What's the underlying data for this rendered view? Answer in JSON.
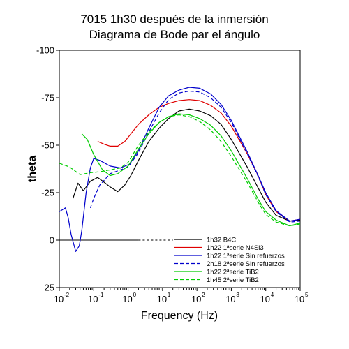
{
  "chart_data": {
    "type": "line",
    "title": "7015 1h30 después de la inmersión",
    "subtitle": "Diagrama de Bode par el ángulo",
    "xlabel": "Frequency (Hz)",
    "ylabel": "theta",
    "x_scale": "log",
    "xlim": [
      0.01,
      100000
    ],
    "ylim": [
      25,
      -100
    ],
    "x_ticks": [
      {
        "base": "10",
        "exp": "-2"
      },
      {
        "base": "10",
        "exp": "-1"
      },
      {
        "base": "10",
        "exp": "0"
      },
      {
        "base": "10",
        "exp": "1"
      },
      {
        "base": "10",
        "exp": "2"
      },
      {
        "base": "10",
        "exp": "3"
      },
      {
        "base": "10",
        "exp": "4"
      },
      {
        "base": "10",
        "exp": "5"
      }
    ],
    "y_ticks": [
      "-100",
      "-75",
      "-50",
      "-25",
      "0",
      "25"
    ],
    "grid": false,
    "legend_position": "bottom-right",
    "zero_line": true,
    "series": [
      {
        "name": "1h32 B4C",
        "color": "#000000",
        "dash": "solid",
        "points": [
          [
            0.025,
            -22
          ],
          [
            0.035,
            -30
          ],
          [
            0.05,
            -26
          ],
          [
            0.08,
            -31
          ],
          [
            0.13,
            -33
          ],
          [
            0.2,
            -30.5
          ],
          [
            0.3,
            -28
          ],
          [
            0.5,
            -25.5
          ],
          [
            0.8,
            -29
          ],
          [
            1.2,
            -34
          ],
          [
            2,
            -42
          ],
          [
            4,
            -52
          ],
          [
            8,
            -59
          ],
          [
            15,
            -64
          ],
          [
            30,
            -68
          ],
          [
            60,
            -69
          ],
          [
            120,
            -68
          ],
          [
            250,
            -65.5
          ],
          [
            500,
            -61
          ],
          [
            1000,
            -53
          ],
          [
            3000,
            -38
          ],
          [
            6000,
            -27.5
          ],
          [
            10000,
            -20
          ],
          [
            20000,
            -13
          ],
          [
            50000,
            -10
          ],
          [
            100000,
            -10.5
          ]
        ]
      },
      {
        "name": "1h22 1ªserie N4Si3",
        "color": "#e00000",
        "dash": "solid",
        "points": [
          [
            0.13,
            -52
          ],
          [
            0.2,
            -50.5
          ],
          [
            0.3,
            -49.5
          ],
          [
            0.5,
            -49.5
          ],
          [
            0.8,
            -52
          ],
          [
            1.2,
            -56
          ],
          [
            2,
            -61
          ],
          [
            4,
            -66
          ],
          [
            8,
            -70
          ],
          [
            15,
            -72
          ],
          [
            30,
            -73.5
          ],
          [
            60,
            -74
          ],
          [
            120,
            -73.5
          ],
          [
            250,
            -71
          ],
          [
            500,
            -67
          ],
          [
            1000,
            -60
          ],
          [
            3000,
            -45
          ],
          [
            6000,
            -34
          ],
          [
            10000,
            -24
          ],
          [
            20000,
            -15
          ],
          [
            50000,
            -10
          ],
          [
            100000,
            -11
          ]
        ]
      },
      {
        "name": "1h22 1ªserie Sin refuerzos",
        "color": "#0000cc",
        "dash": "solid",
        "points": [
          [
            0.01,
            -15
          ],
          [
            0.015,
            -17
          ],
          [
            0.018,
            -12
          ],
          [
            0.022,
            -3
          ],
          [
            0.03,
            6
          ],
          [
            0.038,
            3
          ],
          [
            0.045,
            -5
          ],
          [
            0.06,
            -25
          ],
          [
            0.08,
            -38
          ],
          [
            0.1,
            -43
          ],
          [
            0.15,
            -42
          ],
          [
            0.3,
            -39
          ],
          [
            0.6,
            -38
          ],
          [
            1.1,
            -40
          ],
          [
            2,
            -47
          ],
          [
            4,
            -59
          ],
          [
            8,
            -70
          ],
          [
            15,
            -76
          ],
          [
            30,
            -79
          ],
          [
            60,
            -80.5
          ],
          [
            120,
            -80
          ],
          [
            250,
            -77
          ],
          [
            500,
            -71.5
          ],
          [
            1000,
            -63
          ],
          [
            3000,
            -46
          ],
          [
            6000,
            -34
          ],
          [
            10000,
            -25
          ],
          [
            20000,
            -15.5
          ],
          [
            50000,
            -10
          ],
          [
            100000,
            -11
          ]
        ]
      },
      {
        "name": "2h18 2ªserie Sin refuerzos",
        "color": "#0000cc",
        "dash": "dashed",
        "points": [
          [
            0.08,
            -17
          ],
          [
            0.1,
            -22
          ],
          [
            0.15,
            -29
          ],
          [
            0.3,
            -35
          ],
          [
            0.6,
            -37
          ],
          [
            1,
            -38.5
          ],
          [
            2,
            -46
          ],
          [
            4,
            -57
          ],
          [
            8,
            -67
          ],
          [
            15,
            -74
          ],
          [
            30,
            -77.5
          ],
          [
            60,
            -78.5
          ],
          [
            120,
            -78
          ],
          [
            250,
            -75
          ],
          [
            500,
            -70
          ],
          [
            1000,
            -62
          ],
          [
            3000,
            -45
          ],
          [
            6000,
            -33.5
          ],
          [
            10000,
            -24
          ],
          [
            20000,
            -15
          ],
          [
            50000,
            -9.5
          ],
          [
            100000,
            -10
          ]
        ]
      },
      {
        "name": "1h22 2ªserie TiB2",
        "color": "#00cc00",
        "dash": "solid",
        "points": [
          [
            0.045,
            -56
          ],
          [
            0.065,
            -53
          ],
          [
            0.1,
            -45
          ],
          [
            0.18,
            -37
          ],
          [
            0.3,
            -34
          ],
          [
            0.5,
            -35
          ],
          [
            1,
            -39
          ],
          [
            2,
            -48
          ],
          [
            4,
            -56
          ],
          [
            8,
            -62
          ],
          [
            15,
            -65
          ],
          [
            30,
            -66.5
          ],
          [
            60,
            -66
          ],
          [
            120,
            -64
          ],
          [
            250,
            -60.5
          ],
          [
            500,
            -55
          ],
          [
            1000,
            -47
          ],
          [
            3000,
            -32
          ],
          [
            6000,
            -21.5
          ],
          [
            10000,
            -15
          ],
          [
            20000,
            -10.5
          ],
          [
            50000,
            -7.5
          ],
          [
            100000,
            -9
          ]
        ]
      },
      {
        "name": "1h45 2ªserie TiB2",
        "color": "#00cc00",
        "dash": "dashed",
        "points": [
          [
            0.01,
            -40.5
          ],
          [
            0.02,
            -38.5
          ],
          [
            0.04,
            -34.5
          ],
          [
            0.08,
            -35.5
          ],
          [
            0.15,
            -36
          ],
          [
            0.3,
            -37
          ],
          [
            0.6,
            -38
          ],
          [
            1,
            -41
          ],
          [
            2,
            -50
          ],
          [
            4,
            -57
          ],
          [
            8,
            -62
          ],
          [
            15,
            -65
          ],
          [
            30,
            -66
          ],
          [
            60,
            -65
          ],
          [
            120,
            -62.5
          ],
          [
            250,
            -58
          ],
          [
            500,
            -52
          ],
          [
            1000,
            -44
          ],
          [
            3000,
            -30
          ],
          [
            6000,
            -20
          ],
          [
            10000,
            -13.5
          ],
          [
            20000,
            -9.5
          ],
          [
            50000,
            -7.5
          ],
          [
            100000,
            -8.5
          ]
        ]
      }
    ]
  }
}
